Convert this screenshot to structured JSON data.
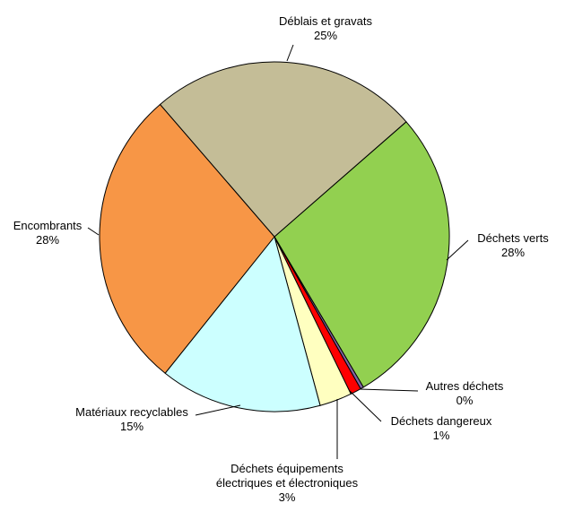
{
  "chart_data": {
    "type": "pie",
    "categories": [
      "Déchets verts",
      "Autres déchets",
      "Déchets dangereux",
      "Déchets équipements électriques et électroniques",
      "Matériaux recyclables",
      "Encombrants",
      "Déblais et gravats"
    ],
    "values": [
      28,
      0.3,
      1,
      3,
      15,
      28,
      25
    ],
    "value_labels": [
      "28%",
      "0%",
      "1%",
      "3%",
      "15%",
      "28%",
      "25%"
    ],
    "colors": [
      "#92d050",
      "#8064a2",
      "#ff0000",
      "#ffffc0",
      "#ccffff",
      "#f79646",
      "#c4bd97"
    ]
  }
}
